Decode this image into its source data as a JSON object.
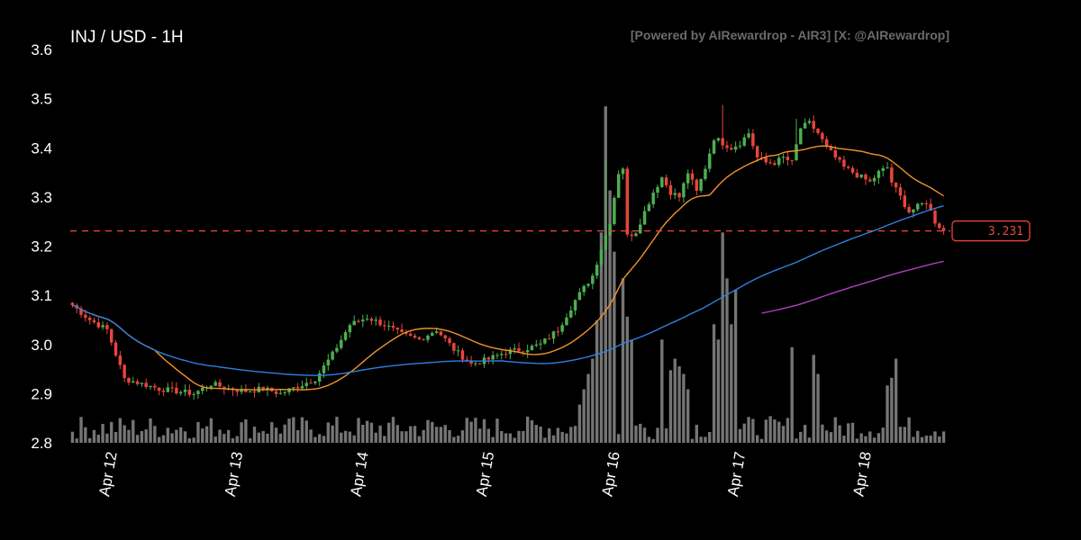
{
  "chart_data": {
    "type": "candlestick",
    "title": "INJ / USD - 1H",
    "watermark": "[Powered by AIRewardrop - AIR3] [X: @AIRewardrop]",
    "ylim": [
      2.8,
      3.6
    ],
    "y_ticks": [
      "2.8",
      "2.9",
      "3.0",
      "3.1",
      "3.2",
      "3.3",
      "3.4",
      "3.5",
      "3.6"
    ],
    "x_ticks": [
      "Apr 12",
      "Apr 13",
      "Apr 14",
      "Apr 15",
      "Apr 16",
      "Apr 17",
      "Apr 18"
    ],
    "current_price": 3.231,
    "current_price_label": "3.231",
    "colors": {
      "up": "#4caf50",
      "down": "#e8453c",
      "volume": "#8a8a8a",
      "ma_fast": "#f0932b",
      "ma_mid": "#2f7fe0",
      "ma_slow": "#b040c0",
      "price_line": "#e8453c"
    },
    "price_path": [
      [
        0,
        3.08
      ],
      [
        4,
        3.05
      ],
      [
        8,
        3.03
      ],
      [
        12,
        2.93
      ],
      [
        16,
        2.92
      ],
      [
        20,
        2.91
      ],
      [
        24,
        2.905
      ],
      [
        28,
        2.9
      ],
      [
        32,
        2.92
      ],
      [
        36,
        2.91
      ],
      [
        40,
        2.905
      ],
      [
        44,
        2.91
      ],
      [
        48,
        2.9
      ],
      [
        52,
        2.915
      ],
      [
        56,
        2.93
      ],
      [
        60,
        2.98
      ],
      [
        64,
        3.04
      ],
      [
        68,
        3.055
      ],
      [
        72,
        3.04
      ],
      [
        76,
        3.02
      ],
      [
        80,
        3.01
      ],
      [
        84,
        3.03
      ],
      [
        88,
        2.99
      ],
      [
        92,
        2.96
      ],
      [
        96,
        2.97
      ],
      [
        100,
        2.985
      ],
      [
        104,
        2.99
      ],
      [
        108,
        3.0
      ],
      [
        112,
        3.03
      ],
      [
        116,
        3.09
      ],
      [
        120,
        3.14
      ],
      [
        124,
        3.25
      ],
      [
        126,
        3.35
      ],
      [
        127,
        3.36
      ],
      [
        128,
        3.22
      ],
      [
        130,
        3.23
      ],
      [
        132,
        3.27
      ],
      [
        134,
        3.31
      ],
      [
        136,
        3.34
      ],
      [
        138,
        3.31
      ],
      [
        140,
        3.3
      ],
      [
        142,
        3.35
      ],
      [
        144,
        3.31
      ],
      [
        146,
        3.36
      ],
      [
        148,
        3.42
      ],
      [
        150,
        3.41
      ],
      [
        152,
        3.4
      ],
      [
        154,
        3.41
      ],
      [
        156,
        3.43
      ],
      [
        158,
        3.38
      ],
      [
        160,
        3.37
      ],
      [
        162,
        3.37
      ],
      [
        164,
        3.38
      ],
      [
        166,
        3.37
      ],
      [
        168,
        3.44
      ],
      [
        170,
        3.45
      ],
      [
        172,
        3.43
      ],
      [
        174,
        3.4
      ],
      [
        176,
        3.38
      ],
      [
        178,
        3.36
      ],
      [
        180,
        3.35
      ],
      [
        182,
        3.34
      ],
      [
        184,
        3.33
      ],
      [
        186,
        3.35
      ],
      [
        188,
        3.36
      ],
      [
        189,
        3.33
      ],
      [
        191,
        3.3
      ],
      [
        193,
        3.27
      ],
      [
        195,
        3.28
      ],
      [
        197,
        3.29
      ],
      [
        199,
        3.25
      ],
      [
        201,
        3.231
      ]
    ],
    "volume_peaks": [
      [
        117,
        0.1
      ],
      [
        118,
        0.14
      ],
      [
        119,
        0.18
      ],
      [
        120,
        0.22
      ],
      [
        121,
        0.32
      ],
      [
        122,
        0.55
      ],
      [
        123,
        0.88
      ],
      [
        124,
        0.66
      ],
      [
        125,
        0.5
      ],
      [
        127,
        0.43
      ],
      [
        128,
        0.33
      ],
      [
        129,
        0.27
      ],
      [
        136,
        0.27
      ],
      [
        138,
        0.19
      ],
      [
        139,
        0.22
      ],
      [
        140,
        0.2
      ],
      [
        141,
        0.18
      ],
      [
        142,
        0.14
      ],
      [
        148,
        0.31
      ],
      [
        149,
        0.27
      ],
      [
        150,
        0.55
      ],
      [
        151,
        0.43
      ],
      [
        152,
        0.31
      ],
      [
        153,
        0.4
      ],
      [
        166,
        0.25
      ],
      [
        171,
        0.23
      ],
      [
        172,
        0.18
      ],
      [
        188,
        0.15
      ],
      [
        189,
        0.17
      ],
      [
        190,
        0.22
      ]
    ],
    "volume_ylim": [
      0,
      0.9
    ],
    "series": [
      {
        "name": "",
        "kind": "ma_fast",
        "period": 20
      },
      {
        "name": "",
        "kind": "ma_mid",
        "period": 100
      },
      {
        "name": "",
        "kind": "ma_slow",
        "period": 160
      }
    ]
  }
}
